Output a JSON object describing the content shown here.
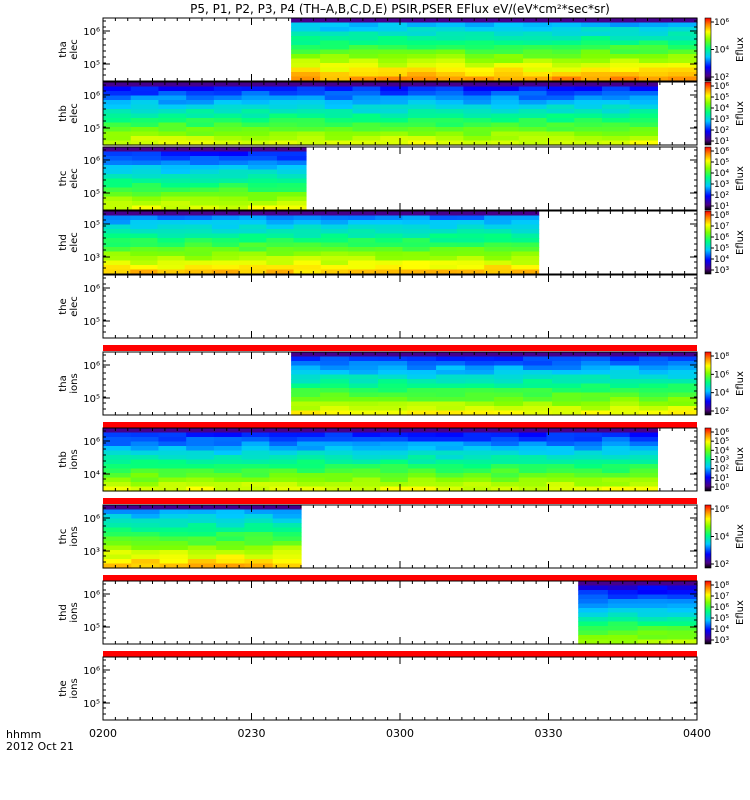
{
  "chart_data": {
    "type": "heatmap",
    "title": "P5, P1, P2, P3, P4 (TH–A,B,C,D,E) PSIR,PSER EFlux eV/(eV*cm²*sec*sr)",
    "x_axis": {
      "unit_label": "hhmm",
      "date_label": "2012 Oct 21",
      "range_minutes": [
        0,
        120
      ],
      "ticks": [
        {
          "label": "0200",
          "t": 0
        },
        {
          "label": "0230",
          "t": 30
        },
        {
          "label": "0300",
          "t": 60
        },
        {
          "label": "0330",
          "t": 90
        },
        {
          "label": "0400",
          "t": 120
        }
      ]
    },
    "colorbar_label": "Eflux",
    "panels": [
      {
        "probe": "tha",
        "species": "elec",
        "ylabel": "tha elec",
        "yticks": [
          "10⁶",
          "10⁵"
        ],
        "data_start_min": 38,
        "data_end_min": 120,
        "palette_shift": 0.12,
        "colorbar_ticks": [
          "10⁶",
          "10⁴",
          "10²"
        ]
      },
      {
        "probe": "thb",
        "species": "elec",
        "ylabel": "thb elec",
        "yticks": [
          "10⁶",
          "10⁵"
        ],
        "data_start_min": 0,
        "data_end_min": 112,
        "palette_shift": 0.0,
        "colorbar_ticks": [
          "10⁶",
          "10⁵",
          "10⁴",
          "10³",
          "10²",
          "10¹"
        ]
      },
      {
        "probe": "thc",
        "species": "elec",
        "ylabel": "thc elec",
        "yticks": [
          "10⁶",
          "10⁵"
        ],
        "data_start_min": 0,
        "data_end_min": 41,
        "palette_shift": 0.0,
        "colorbar_ticks": [
          "10⁶",
          "10⁵",
          "10⁴",
          "10³",
          "10²",
          "10¹"
        ]
      },
      {
        "probe": "thd",
        "species": "elec",
        "ylabel": "thd elec",
        "yticks": [
          "10⁵",
          "10³"
        ],
        "data_start_min": 0,
        "data_end_min": 88,
        "palette_shift": 0.08,
        "colorbar_ticks": [
          "10⁸",
          "10⁷",
          "10⁶",
          "10⁵",
          "10⁴",
          "10³"
        ]
      },
      {
        "probe": "the",
        "species": "elec",
        "ylabel": "the elec",
        "yticks": [
          "10⁶",
          "10⁵"
        ],
        "data_start_min": null,
        "data_end_min": null,
        "palette_shift": 0.0,
        "colorbar_ticks": []
      },
      {
        "probe": "tha",
        "species": "ions",
        "ylabel": "tha ions",
        "yticks": [
          "10⁶",
          "10⁵"
        ],
        "data_start_min": 38,
        "data_end_min": 120,
        "palette_shift": 0.02,
        "colorbar_ticks": [
          "10⁸",
          "10⁶",
          "10⁴",
          "10²"
        ]
      },
      {
        "probe": "thb",
        "species": "ions",
        "ylabel": "thb ions",
        "yticks": [
          "10⁶",
          "10⁴"
        ],
        "data_start_min": 0,
        "data_end_min": 112,
        "palette_shift": 0.0,
        "colorbar_ticks": [
          "10⁶",
          "10⁵",
          "10⁴",
          "10³",
          "10²",
          "10¹",
          "10⁰"
        ]
      },
      {
        "probe": "thc",
        "species": "ions",
        "ylabel": "thc ions",
        "yticks": [
          "10⁶",
          "10³"
        ],
        "data_start_min": 0,
        "data_end_min": 40,
        "palette_shift": 0.1,
        "colorbar_ticks": [
          "10⁶",
          "10⁴",
          "10²"
        ]
      },
      {
        "probe": "thd",
        "species": "ions",
        "ylabel": "thd ions",
        "yticks": [
          "10⁶",
          "10⁵"
        ],
        "data_start_min": 96,
        "data_end_min": 120,
        "palette_shift": -0.05,
        "colorbar_ticks": [
          "10⁸",
          "10⁷",
          "10⁶",
          "10⁵",
          "10⁴",
          "10³"
        ]
      },
      {
        "probe": "the",
        "species": "ions",
        "ylabel": "the ions",
        "yticks": [
          "10⁶",
          "10⁵"
        ],
        "data_start_min": null,
        "data_end_min": null,
        "palette_shift": 0.0,
        "colorbar_ticks": []
      }
    ]
  }
}
